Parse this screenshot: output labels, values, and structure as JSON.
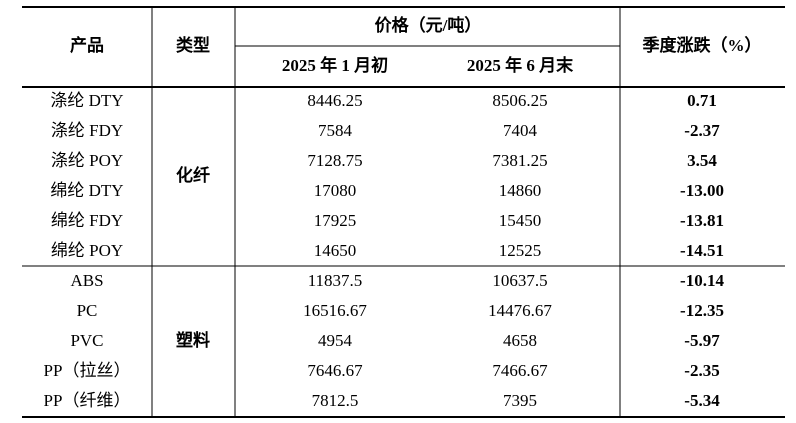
{
  "table": {
    "header": {
      "product": "产品",
      "type": "类型",
      "price_group": "价格（元/吨）",
      "date1": "2025 年 1 月初",
      "date2": "2025 年 6 月末",
      "change": "季度涨跌（%）"
    },
    "colors": {
      "up": "#e0201e",
      "down": "#1fa04a"
    },
    "groups": [
      {
        "type": "化纤",
        "rows": [
          [
            "涤纶 DTY",
            "8446.25",
            "8506.25",
            "0.71"
          ],
          [
            "涤纶 FDY",
            "7584",
            "7404",
            "-2.37"
          ],
          [
            "涤纶 POY",
            "7128.75",
            "7381.25",
            "3.54"
          ],
          [
            "绵纶 DTY",
            "17080",
            "14860",
            "-13.00"
          ],
          [
            "绵纶 FDY",
            "17925",
            "15450",
            "-13.81"
          ],
          [
            "绵纶 POY",
            "14650",
            "12525",
            "-14.51"
          ]
        ]
      },
      {
        "type": "塑料",
        "rows": [
          [
            "ABS",
            "11837.5",
            "10637.5",
            "-10.14"
          ],
          [
            "PC",
            "16516.67",
            "14476.67",
            "-12.35"
          ],
          [
            "PVC",
            "4954",
            "4658",
            "-5.97"
          ],
          [
            "PP（拉丝）",
            "7646.67",
            "7466.67",
            "-2.35"
          ],
          [
            "PP（纤维）",
            "7812.5",
            "7395",
            "-5.34"
          ]
        ]
      }
    ]
  }
}
